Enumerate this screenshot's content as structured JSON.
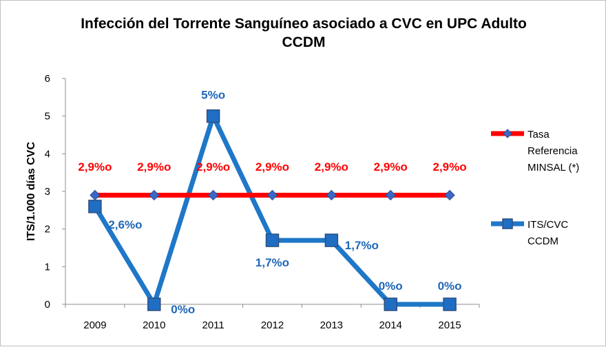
{
  "chart_data": {
    "type": "line",
    "title_lines": [
      "Infección del Torrente Sanguíneo asociado a CVC en UPC Adulto",
      "CCDM"
    ],
    "xlabel": "",
    "ylabel": "ITS/1.000 días CVC",
    "categories": [
      "2009",
      "2010",
      "2011",
      "2012",
      "2013",
      "2014",
      "2015"
    ],
    "ylim": [
      0,
      6
    ],
    "yticks": [
      "0",
      "1",
      "2",
      "3",
      "4",
      "5",
      "6"
    ],
    "grid": false,
    "legend_position": "right",
    "series": [
      {
        "name_lines": [
          "Tasa",
          "Referencia",
          "MINSAL (*)"
        ],
        "values": [
          2.9,
          2.9,
          2.9,
          2.9,
          2.9,
          2.9,
          2.9
        ],
        "labels": [
          "2,9%o",
          "2,9%o",
          "2,9%o",
          "2,9%o",
          "2,9%o",
          "2,9%o",
          "2,9%o"
        ],
        "color": "#ff0000",
        "marker_color": "#3b68c4",
        "marker": "diamond",
        "label_color": "#ff0000"
      },
      {
        "name_lines": [
          "ITS/CVC",
          "CCDM"
        ],
        "values": [
          2.6,
          0,
          5,
          1.7,
          1.7,
          0,
          0
        ],
        "labels": [
          "2,6%o",
          "0%o",
          "5%o",
          "1,7%o",
          "1,7%o",
          "0%o",
          "0%o"
        ],
        "color": "#1f77c8",
        "marker_color": "#1f6ec4",
        "marker": "square",
        "label_color": "#1f67b8"
      }
    ]
  }
}
